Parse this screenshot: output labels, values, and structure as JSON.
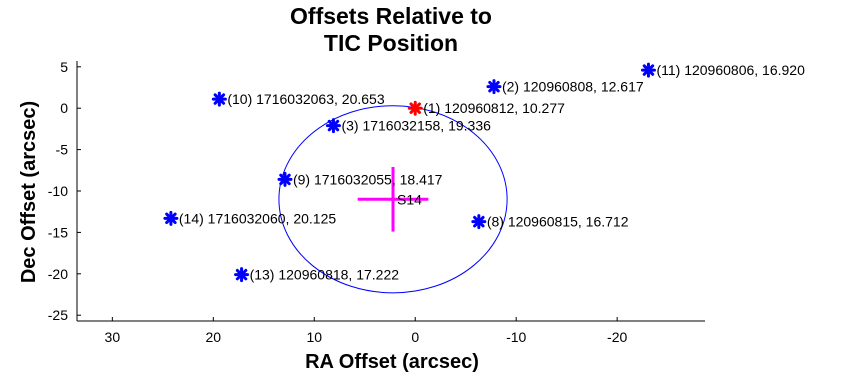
{
  "chart_data": {
    "type": "scatter",
    "title": [
      "Offsets Relative to",
      "TIC Position"
    ],
    "xlabel": "RA Offset (arcsec)",
    "ylabel": "Dec Offset (arcsec)",
    "xlim": [
      33.5,
      -28.7
    ],
    "ylim": [
      -25.7,
      5.7
    ],
    "x_reversed": true,
    "x_ticks": [
      30,
      20,
      10,
      0,
      -10,
      -20
    ],
    "y_ticks": [
      5,
      0,
      -5,
      -10,
      -15,
      -20,
      -25
    ],
    "grid": false,
    "colors": {
      "neighbor": "#0000ff",
      "target": "#ff0000",
      "centroid": "#ff00ff",
      "circle": "#0000ff"
    },
    "points": [
      {
        "label": "(1) 120960812, 10.277",
        "x": 0.0,
        "y": 0.0,
        "role": "target"
      },
      {
        "label": "(2) 120960808, 12.617",
        "x": -7.8,
        "y": 2.6,
        "role": "neighbor"
      },
      {
        "label": "(3) 1716032158, 19.336",
        "x": 8.1,
        "y": -2.1,
        "role": "neighbor"
      },
      {
        "label": "(8) 120960815, 16.712",
        "x": -6.3,
        "y": -13.7,
        "role": "neighbor"
      },
      {
        "label": "(9) 1716032055, 18.417",
        "x": 12.9,
        "y": -8.6,
        "role": "neighbor"
      },
      {
        "label": "(10) 1716032063, 20.653",
        "x": 19.4,
        "y": 1.1,
        "role": "neighbor"
      },
      {
        "label": "(11) 120960806, 16.920",
        "x": -23.1,
        "y": 4.6,
        "role": "neighbor"
      },
      {
        "label": "(13) 120960818, 17.222",
        "x": 17.2,
        "y": -20.1,
        "role": "neighbor"
      },
      {
        "label": "(14) 1716032060, 20.125",
        "x": 24.2,
        "y": -13.3,
        "role": "neighbor"
      }
    ],
    "centroid": {
      "label": "S14",
      "x": 2.2,
      "y": -11.0,
      "err_x": 3.5,
      "err_y": 3.9
    },
    "circle": {
      "center_x": 2.2,
      "center_y": -11.0,
      "radius": 11.3
    }
  }
}
